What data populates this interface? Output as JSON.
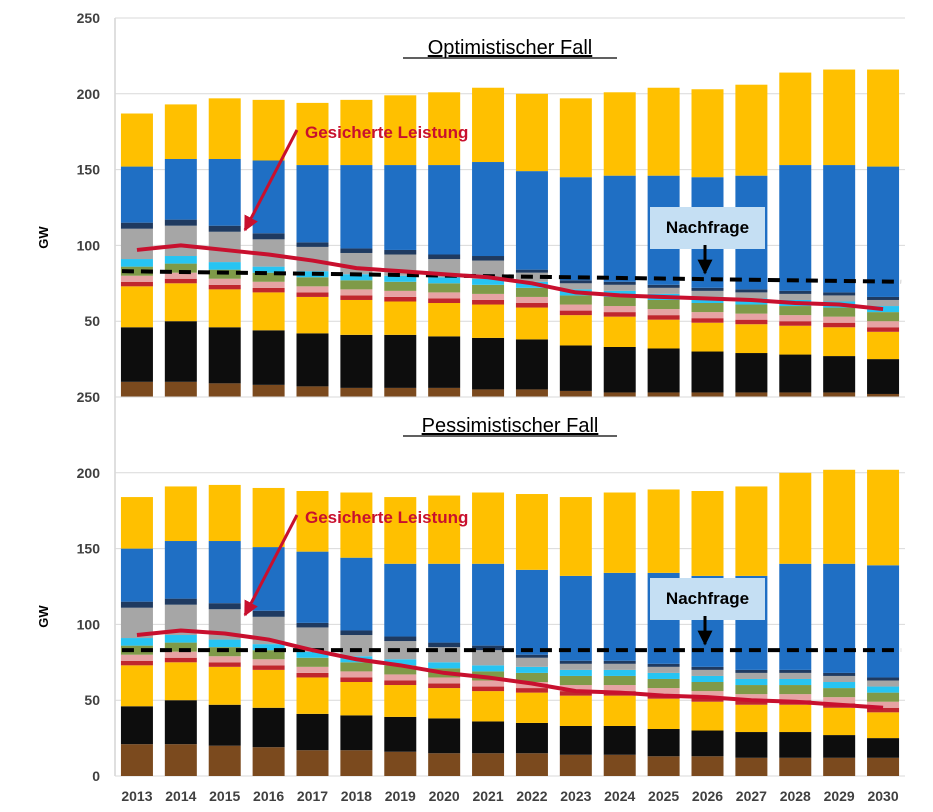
{
  "years": [
    "2013",
    "2014",
    "2015",
    "2016",
    "2017",
    "2018",
    "2019",
    "2020",
    "2021",
    "2022",
    "2023",
    "2024",
    "2025",
    "2026",
    "2027",
    "2028",
    "2029",
    "2030"
  ],
  "colors": {
    "brown": "#7b4a1e",
    "black": "#0d0d0d",
    "yellow": "#ffc000",
    "red": "#c0272d",
    "pink": "#e6a3a3",
    "green": "#7f9a48",
    "cyan": "#27c4f2",
    "gray": "#a6a6a6",
    "navy": "#1f3a60",
    "blue": "#1f6fc4",
    "demand": "#000000",
    "secured": "#c8102e",
    "label_box": "#c5dff3"
  },
  "chart_data": [
    {
      "type": "bar",
      "stacked": true,
      "title": "Optimistischer Fall",
      "ylabel": "GW",
      "ylim": [
        0,
        250
      ],
      "yticks": [
        50,
        100,
        150,
        200,
        250
      ],
      "categories": [
        "2013",
        "2014",
        "2015",
        "2016",
        "2017",
        "2018",
        "2019",
        "2020",
        "2021",
        "2022",
        "2023",
        "2024",
        "2025",
        "2026",
        "2027",
        "2028",
        "2029",
        "2030"
      ],
      "series": [
        {
          "color_key": "brown",
          "values": [
            10,
            10,
            9,
            8,
            7,
            6,
            6,
            6,
            5,
            5,
            4,
            3,
            3,
            3,
            3,
            3,
            3,
            2
          ]
        },
        {
          "color_key": "black",
          "values": [
            36,
            40,
            37,
            36,
            35,
            35,
            35,
            34,
            34,
            33,
            30,
            30,
            29,
            27,
            26,
            25,
            24,
            23
          ]
        },
        {
          "color_key": "yellow",
          "values": [
            27,
            25,
            25,
            25,
            24,
            23,
            22,
            22,
            22,
            21,
            20,
            20,
            19,
            19,
            19,
            19,
            19,
            18
          ]
        },
        {
          "color_key": "red",
          "values": [
            3,
            3,
            3,
            3,
            3,
            3,
            3,
            3,
            3,
            3,
            3,
            3,
            3,
            3,
            3,
            3,
            3,
            3
          ]
        },
        {
          "color_key": "pink",
          "values": [
            4,
            4,
            4,
            4,
            4,
            4,
            4,
            4,
            4,
            4,
            4,
            4,
            4,
            4,
            4,
            4,
            4,
            4
          ]
        },
        {
          "color_key": "green",
          "values": [
            6,
            6,
            6,
            6,
            6,
            6,
            6,
            6,
            6,
            6,
            6,
            6,
            6,
            6,
            6,
            6,
            6,
            6
          ]
        },
        {
          "color_key": "cyan",
          "values": [
            5,
            5,
            5,
            4,
            4,
            4,
            4,
            4,
            4,
            4,
            4,
            4,
            4,
            4,
            4,
            4,
            4,
            4
          ]
        },
        {
          "color_key": "gray",
          "values": [
            20,
            20,
            20,
            18,
            16,
            14,
            14,
            12,
            12,
            6,
            4,
            4,
            4,
            4,
            4,
            4,
            4,
            4
          ]
        },
        {
          "color_key": "navy",
          "values": [
            4,
            4,
            4,
            4,
            3,
            3,
            3,
            3,
            3,
            2,
            2,
            2,
            2,
            2,
            2,
            2,
            2,
            2
          ]
        },
        {
          "color_key": "blue",
          "values": [
            37,
            40,
            44,
            48,
            51,
            55,
            56,
            59,
            62,
            65,
            68,
            70,
            72,
            73,
            75,
            83,
            84,
            86
          ]
        },
        {
          "color_key": "yellow",
          "values": [
            35,
            36,
            40,
            40,
            41,
            43,
            46,
            48,
            49,
            51,
            52,
            55,
            58,
            58,
            60,
            61,
            63,
            64
          ]
        }
      ],
      "demand": 83,
      "demand_end": 76,
      "secured": [
        97,
        100,
        97,
        94,
        90,
        85,
        83,
        81,
        79,
        75,
        69,
        67,
        66,
        65,
        64,
        62,
        61,
        58
      ],
      "annotations": {
        "secured_label": "Gesicherte Leistung",
        "demand_label": "Nachfrage"
      }
    },
    {
      "type": "bar",
      "stacked": true,
      "title": "Pessimistischer Fall",
      "ylabel": "GW",
      "ylim": [
        0,
        250
      ],
      "yticks": [
        0,
        50,
        100,
        150,
        200,
        250
      ],
      "categories": [
        "2013",
        "2014",
        "2015",
        "2016",
        "2017",
        "2018",
        "2019",
        "2020",
        "2021",
        "2022",
        "2023",
        "2024",
        "2025",
        "2026",
        "2027",
        "2028",
        "2029",
        "2030"
      ],
      "series": [
        {
          "color_key": "brown",
          "values": [
            21,
            21,
            20,
            19,
            17,
            17,
            16,
            15,
            15,
            15,
            14,
            14,
            13,
            13,
            12,
            12,
            12,
            12
          ]
        },
        {
          "color_key": "black",
          "values": [
            25,
            29,
            27,
            26,
            24,
            23,
            23,
            23,
            21,
            20,
            19,
            19,
            18,
            17,
            17,
            17,
            15,
            13
          ]
        },
        {
          "color_key": "yellow",
          "values": [
            27,
            25,
            25,
            25,
            24,
            22,
            21,
            20,
            20,
            20,
            20,
            20,
            20,
            19,
            18,
            18,
            18,
            17
          ]
        },
        {
          "color_key": "red",
          "values": [
            3,
            3,
            3,
            3,
            3,
            3,
            3,
            3,
            3,
            3,
            3,
            3,
            3,
            3,
            3,
            3,
            3,
            3
          ]
        },
        {
          "color_key": "pink",
          "values": [
            4,
            4,
            4,
            4,
            4,
            4,
            4,
            4,
            4,
            4,
            4,
            4,
            4,
            4,
            4,
            4,
            4,
            4
          ]
        },
        {
          "color_key": "green",
          "values": [
            6,
            6,
            6,
            6,
            6,
            6,
            6,
            6,
            6,
            6,
            6,
            6,
            6,
            6,
            6,
            6,
            6,
            6
          ]
        },
        {
          "color_key": "cyan",
          "values": [
            5,
            5,
            5,
            4,
            4,
            4,
            4,
            4,
            4,
            4,
            4,
            4,
            4,
            4,
            4,
            4,
            4,
            4
          ]
        },
        {
          "color_key": "gray",
          "values": [
            20,
            20,
            20,
            18,
            16,
            14,
            12,
            10,
            10,
            6,
            4,
            4,
            4,
            4,
            4,
            4,
            4,
            4
          ]
        },
        {
          "color_key": "navy",
          "values": [
            4,
            4,
            4,
            4,
            3,
            3,
            3,
            3,
            3,
            2,
            2,
            2,
            2,
            2,
            2,
            2,
            2,
            2
          ]
        },
        {
          "color_key": "blue",
          "values": [
            35,
            38,
            41,
            42,
            47,
            48,
            48,
            52,
            54,
            56,
            56,
            58,
            60,
            60,
            62,
            70,
            72,
            74
          ]
        },
        {
          "color_key": "yellow",
          "values": [
            34,
            36,
            37,
            39,
            40,
            43,
            44,
            45,
            47,
            50,
            52,
            53,
            55,
            56,
            59,
            60,
            62,
            63
          ]
        }
      ],
      "demand": 83,
      "demand_end": 83,
      "secured": [
        93,
        96,
        94,
        90,
        83,
        77,
        73,
        68,
        65,
        61,
        56,
        55,
        53,
        52,
        50,
        49,
        47,
        45
      ],
      "annotations": {
        "secured_label": "Gesicherte Leistung",
        "demand_label": "Nachfrage"
      }
    }
  ]
}
